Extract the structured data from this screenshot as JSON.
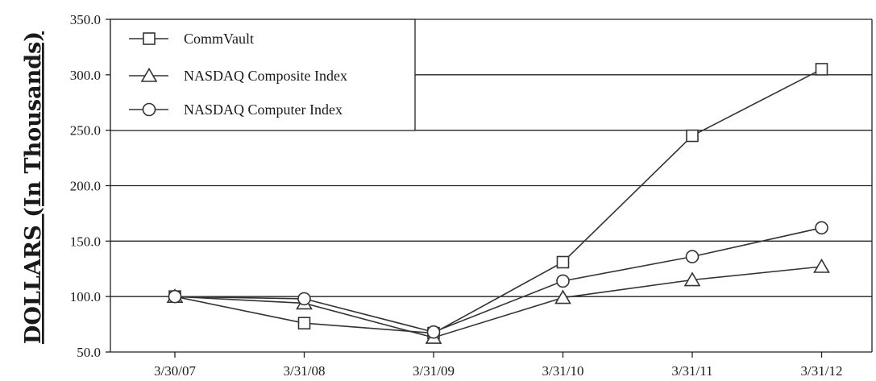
{
  "chart_data": {
    "type": "line",
    "title": "",
    "xlabel": "",
    "ylabel": "DOLLARS (In Thousands)",
    "categories": [
      "3/30/07",
      "3/31/08",
      "3/31/09",
      "3/31/10",
      "3/31/11",
      "3/31/12"
    ],
    "y_ticks": [
      "50.0",
      "100.0",
      "150.0",
      "200.0",
      "250.0",
      "300.0",
      "350.0"
    ],
    "ylim": [
      50,
      350
    ],
    "grid": "horizontal",
    "legend_position": "top-left",
    "series": [
      {
        "name": "CommVault",
        "marker": "square",
        "values": [
          100.0,
          76.0,
          67.0,
          131.0,
          245.0,
          305.0
        ]
      },
      {
        "name": "NASDAQ Composite Index",
        "marker": "triangle",
        "values": [
          100.0,
          94.0,
          63.0,
          99.0,
          115.0,
          127.0
        ]
      },
      {
        "name": "NASDAQ Computer Index",
        "marker": "circle",
        "values": [
          100.0,
          98.0,
          68.0,
          114.0,
          136.0,
          162.0
        ]
      }
    ],
    "colors": {
      "line": "#333333",
      "marker_fill": "#ffffff",
      "grid": "#222222"
    }
  }
}
